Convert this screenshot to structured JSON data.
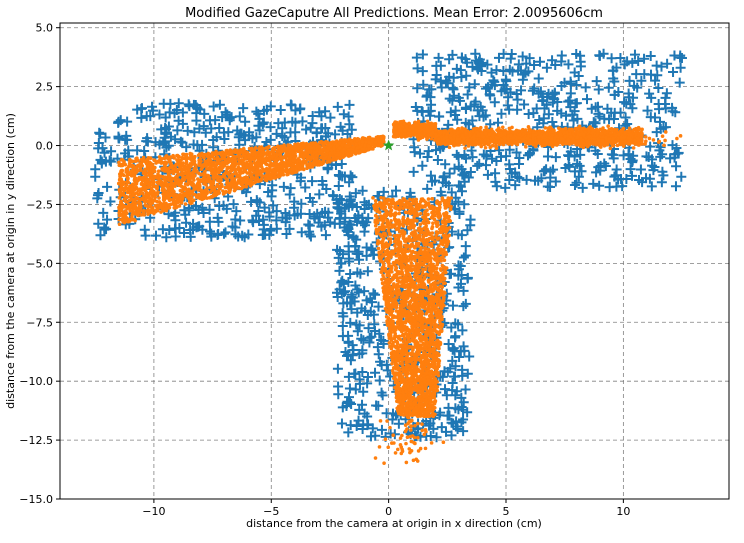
{
  "chart_data": {
    "type": "scatter",
    "title": "Modified GazeCaputre All Predictions. Mean Error: 2.0095606cm",
    "xlabel": "distance from the camera at origin in x direction (cm)",
    "ylabel": "distance from the camera at origin in y direction (cm)",
    "xlim": [
      -14.0,
      14.5
    ],
    "ylim": [
      -15.0,
      5.2
    ],
    "x_ticks": [
      -10,
      -5,
      0,
      5,
      10
    ],
    "x_tick_labels": [
      "−10",
      "−5",
      "0",
      "5",
      "10"
    ],
    "y_ticks": [
      5.0,
      2.5,
      0.0,
      -2.5,
      -5.0,
      -7.5,
      -10.0,
      -12.5,
      -15.0
    ],
    "y_tick_labels": [
      "5.0",
      "2.5",
      "0.0",
      "−2.5",
      "−5.0",
      "−7.5",
      "−10.0",
      "−12.5",
      "−15.0"
    ],
    "grid": true,
    "series": [
      {
        "role": "ground_truth",
        "marker": "plus",
        "color": "#1f77b4",
        "regions": [
          {
            "x": [
              -12.5,
              -1.5
            ],
            "y": [
              -3.9,
              1.8
            ]
          },
          {
            "x": [
              1.0,
              12.5
            ],
            "y": [
              -1.8,
              3.9
            ]
          },
          {
            "x": [
              -2.2,
              3.5
            ],
            "y": [
              -12.4,
              -1.8
            ]
          }
        ]
      },
      {
        "role": "prediction",
        "marker": "dot",
        "color": "#ff7f0e",
        "regions": [
          {
            "x": [
              -11.5,
              -0.2
            ],
            "y": [
              -3.5,
              0.5
            ]
          },
          {
            "x": [
              0.2,
              13.2
            ],
            "y": [
              -0.5,
              2.2
            ]
          },
          {
            "x": [
              -1.8,
              3.8
            ],
            "y": [
              -13.5,
              -2.0
            ]
          }
        ]
      },
      {
        "role": "camera_origin",
        "marker": "star",
        "color": "#2ca02c",
        "points": [
          [
            0.0,
            0.0
          ]
        ]
      }
    ]
  }
}
